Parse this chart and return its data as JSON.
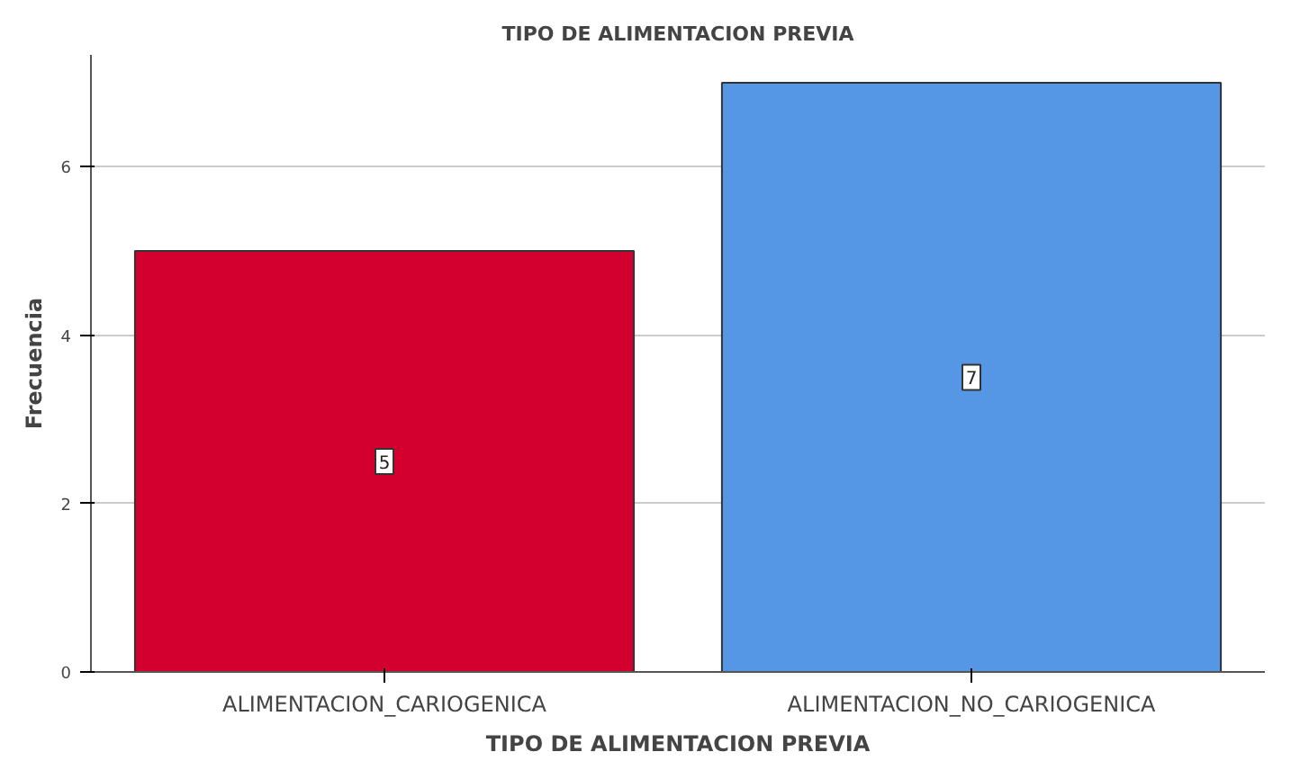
{
  "chart_data": {
    "type": "bar",
    "title": "TIPO DE ALIMENTACION PREVIA",
    "xlabel": "TIPO DE ALIMENTACION PREVIA",
    "ylabel": "Frecuencia",
    "categories": [
      "ALIMENTACION_CARIOGENICA",
      "ALIMENTACION_NO_CARIOGENICA"
    ],
    "values": [
      5,
      7
    ],
    "colors": [
      "#d3002f",
      "#5597e5"
    ],
    "ylim": [
      0,
      7.33
    ],
    "yticks": [
      0,
      2,
      4,
      6
    ],
    "grid": "y",
    "data_labels": true
  }
}
